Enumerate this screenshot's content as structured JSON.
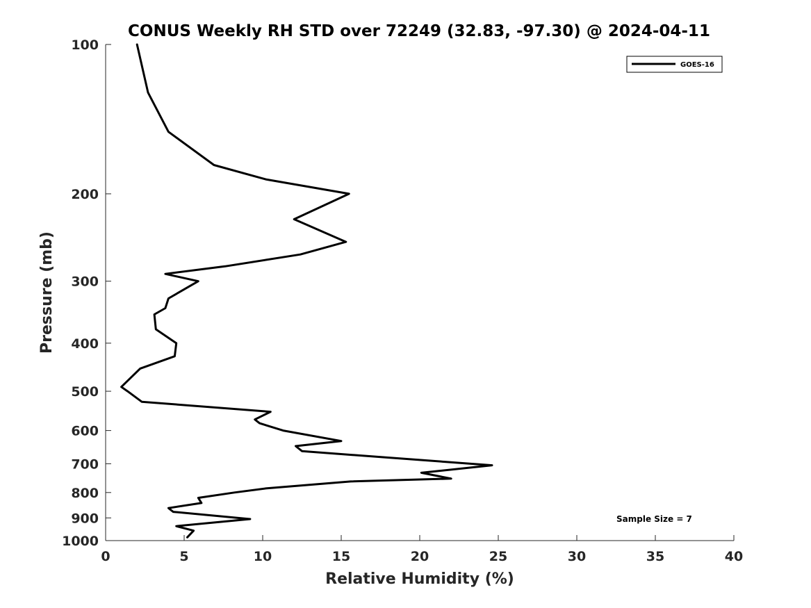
{
  "chart_data": {
    "type": "line",
    "title": "CONUS Weekly RH STD over 72249 (32.83, -97.30) @ 2024-04-11",
    "xlabel": "Relative Humidity (%)",
    "ylabel": "Pressure (mb)",
    "xlim": [
      0,
      40
    ],
    "ylim": [
      1000,
      100
    ],
    "y_scale": "log",
    "x_ticks": [
      "0",
      "5",
      "10",
      "15",
      "20",
      "25",
      "30",
      "35",
      "40"
    ],
    "y_ticks": [
      "100",
      "200",
      "300",
      "400",
      "500",
      "600",
      "700",
      "800",
      "900",
      "1000"
    ],
    "grid": false,
    "legend_position": "top-right",
    "annotation": "Sample Size = 7",
    "series": [
      {
        "name": "GOES-16",
        "color": "#000000",
        "x": [
          2.0,
          2.7,
          4.0,
          6.9,
          10.2,
          15.5,
          12.0,
          15.3,
          12.4,
          7.6,
          3.8,
          5.9,
          4.0,
          3.8,
          3.1,
          3.2,
          4.5,
          4.4,
          2.2,
          1.0,
          1.4,
          2.3,
          10.5,
          9.5,
          9.8,
          11.3,
          15.0,
          12.1,
          12.5,
          17.9,
          24.6,
          20.1,
          22.0,
          15.6,
          10.2,
          8.2,
          5.9,
          6.1,
          4.0,
          4.3,
          9.2,
          4.5,
          5.6,
          5.2
        ],
        "y": [
          100,
          125,
          150,
          175,
          187,
          200,
          225,
          250,
          265,
          280,
          290,
          300,
          325,
          340,
          350,
          375,
          400,
          425,
          450,
          490,
          500,
          525,
          550,
          570,
          580,
          600,
          630,
          645,
          660,
          680,
          705,
          730,
          750,
          760,
          785,
          800,
          820,
          840,
          860,
          875,
          905,
          935,
          955,
          985
        ]
      }
    ]
  }
}
